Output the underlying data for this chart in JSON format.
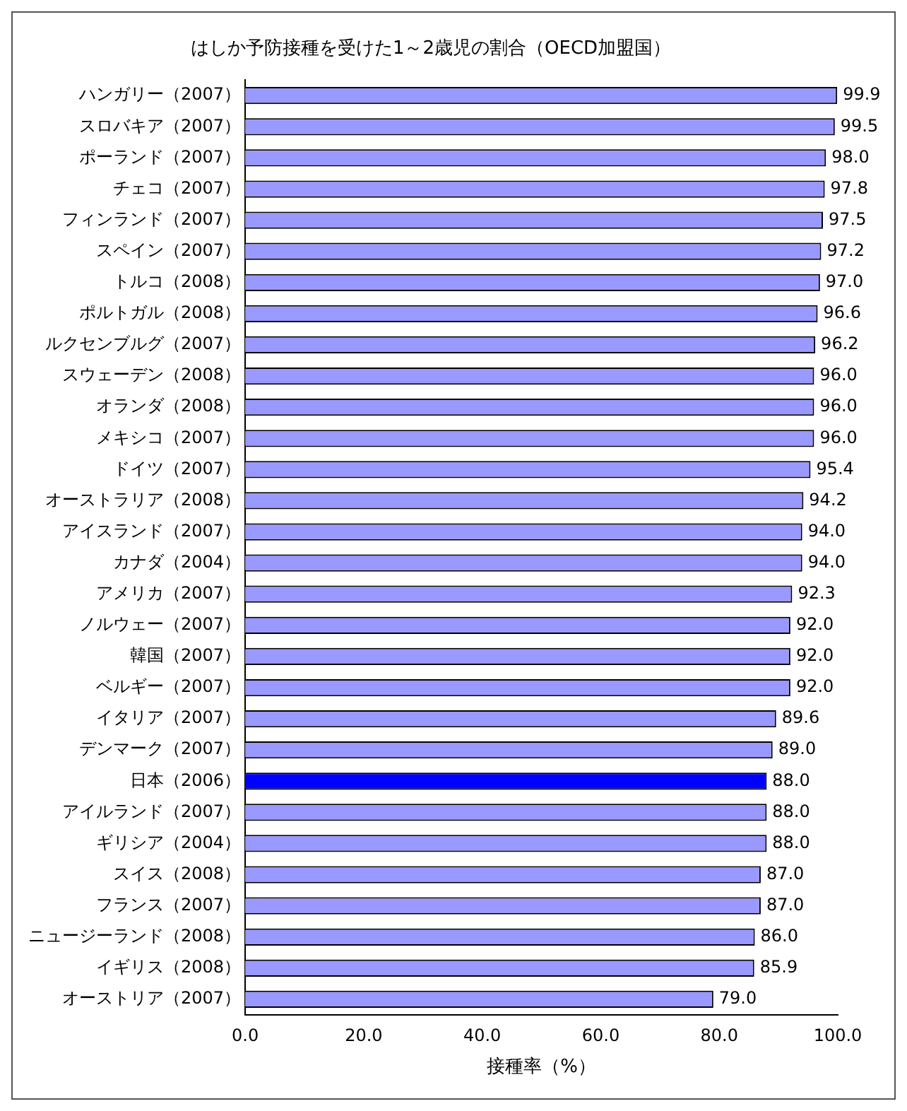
{
  "chart_data": {
    "type": "bar",
    "orientation": "horizontal",
    "title": "はしか予防接種を受けた1～2歳児の割合（OECD加盟国）",
    "xlabel": "接種率（%）",
    "categories": [
      "ハンガリー（2007）",
      "スロバキア（2007）",
      "ポーランド（2007）",
      "チェコ（2007）",
      "フィンランド（2007）",
      "スペイン（2007）",
      "トルコ（2008）",
      "ポルトガル（2008）",
      "ルクセンブルグ（2007）",
      "スウェーデン（2008）",
      "オランダ（2008）",
      "メキシコ（2007）",
      "ドイツ（2007）",
      "オーストラリア（2008）",
      "アイスランド（2007）",
      "カナダ（2004）",
      "アメリカ（2007）",
      "ノルウェー（2007）",
      "韓国（2007）",
      "ベルギー（2007）",
      "イタリア（2007）",
      "デンマーク（2007）",
      "日本（2006）",
      "アイルランド（2007）",
      "ギリシア（2004）",
      "スイス（2008）",
      "フランス（2007）",
      "ニュージーランド（2008）",
      "イギリス（2008）",
      "オーストリア（2007）"
    ],
    "values": [
      99.9,
      99.5,
      98.0,
      97.8,
      97.5,
      97.2,
      97.0,
      96.6,
      96.2,
      96.0,
      96.0,
      96.0,
      95.4,
      94.2,
      94.0,
      94.0,
      92.3,
      92.0,
      92.0,
      92.0,
      89.6,
      89.0,
      88.0,
      88.0,
      88.0,
      87.0,
      87.0,
      86.0,
      85.9,
      79.0
    ],
    "value_labels": [
      "99.9",
      "99.5",
      "98.0",
      "97.8",
      "97.5",
      "97.2",
      "97.0",
      "96.6",
      "96.2",
      "96.0",
      "96.0",
      "96.0",
      "95.4",
      "94.2",
      "94.0",
      "94.0",
      "92.3",
      "92.0",
      "92.0",
      "92.0",
      "89.6",
      "89.0",
      "88.0",
      "88.0",
      "88.0",
      "87.0",
      "87.0",
      "86.0",
      "85.9",
      "79.0"
    ],
    "colors": [
      "#9999ff",
      "#9999ff",
      "#9999ff",
      "#9999ff",
      "#9999ff",
      "#9999ff",
      "#9999ff",
      "#9999ff",
      "#9999ff",
      "#9999ff",
      "#9999ff",
      "#9999ff",
      "#9999ff",
      "#9999ff",
      "#9999ff",
      "#9999ff",
      "#9999ff",
      "#9999ff",
      "#9999ff",
      "#9999ff",
      "#9999ff",
      "#9999ff",
      "#0000ff",
      "#9999ff",
      "#9999ff",
      "#9999ff",
      "#9999ff",
      "#9999ff",
      "#9999ff",
      "#9999ff"
    ],
    "xlim": [
      0,
      100
    ],
    "xticks": [
      {
        "value": 0,
        "label": "0.0"
      },
      {
        "value": 20,
        "label": "20.0"
      },
      {
        "value": 40,
        "label": "40.0"
      },
      {
        "value": 60,
        "label": "60.0"
      },
      {
        "value": 80,
        "label": "80.0"
      },
      {
        "value": 100,
        "label": "100.0"
      }
    ],
    "grid": false,
    "legend": false
  }
}
